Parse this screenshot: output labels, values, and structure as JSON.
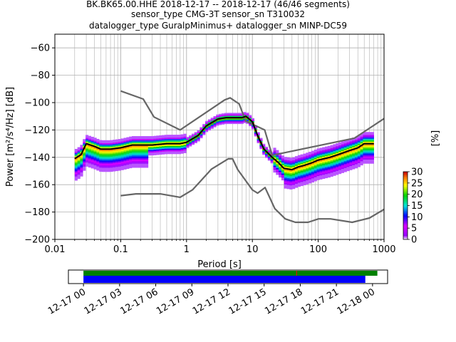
{
  "chart_data": [
    {
      "type": "heatmap",
      "title_lines": [
        "BK.BK65.00.HHE   2018-12-17 -- 2018-12-17  (46/46 segments)",
        "sensor_type CMG-3T sensor_sn T310032",
        "datalogger_type GuralpMinimus+ datalogger_sn MINP-DC59"
      ],
      "xlabel": "Period [s]",
      "ylabel": "Power [m²/s⁴/Hz] [dB]",
      "xscale": "log",
      "xlim": [
        0.01,
        1000
      ],
      "ylim": [
        -200,
        -50
      ],
      "xticks": [
        {
          "value": 0.01,
          "label": "0.01"
        },
        {
          "value": 0.1,
          "label": "0.1"
        },
        {
          "value": 1,
          "label": "1"
        },
        {
          "value": 10,
          "label": "10"
        },
        {
          "value": 100,
          "label": "100"
        },
        {
          "value": 1000,
          "label": "1000"
        }
      ],
      "yticks": [
        -60,
        -80,
        -100,
        -120,
        -140,
        -160,
        -180,
        -200
      ],
      "grid": true,
      "colorbar": {
        "label": "[%]",
        "range": [
          0,
          30
        ],
        "ticks": [
          0,
          5,
          10,
          15,
          20,
          25,
          30
        ]
      },
      "series": [
        {
          "role": "high-noise-model",
          "color": "#666666",
          "x": [
            0.1,
            0.22,
            0.32,
            0.8,
            3.8,
            4.6,
            6.3,
            7.9,
            15.4,
            20,
            354.8,
            10000
          ],
          "y": [
            -91.5,
            -97.4,
            -110.5,
            -120,
            -98,
            -96.5,
            -101,
            -113.5,
            -120,
            -138.5,
            -126,
            -80
          ]
        },
        {
          "role": "low-noise-model",
          "color": "#666666",
          "x": [
            0.1,
            0.17,
            0.4,
            0.8,
            1.24,
            2.4,
            4.3,
            5,
            6,
            10,
            12,
            15.6,
            21.9,
            31.6,
            45,
            70,
            101,
            154,
            328,
            600,
            1000
          ],
          "y": [
            -168,
            -166.7,
            -166.7,
            -169.2,
            -163.7,
            -148.6,
            -141.1,
            -141.1,
            -149,
            -163.8,
            -166.2,
            -162.1,
            -177.5,
            -185,
            -187.5,
            -187.5,
            -185,
            -185,
            -187.5,
            -184.4,
            -178
          ]
        },
        {
          "role": "mode",
          "color": "#000000",
          "x": [
            0.02,
            0.025,
            0.03,
            0.04,
            0.05,
            0.07,
            0.1,
            0.15,
            0.2,
            0.3,
            0.5,
            0.8,
            1,
            1.5,
            2,
            3,
            4,
            5,
            7,
            8,
            10,
            12,
            15,
            20,
            25,
            30,
            40,
            50,
            60,
            80,
            100,
            150,
            200,
            300,
            400,
            500,
            700
          ],
          "y": [
            -141,
            -138,
            -130,
            -132,
            -134,
            -134,
            -133,
            -131,
            -131,
            -131,
            -130,
            -130,
            -129,
            -124,
            -117,
            -112,
            -111,
            -111,
            -111,
            -110,
            -114,
            -124,
            -134,
            -140,
            -144,
            -148,
            -149,
            -147,
            -146,
            -144,
            -142,
            -140,
            -138,
            -135,
            -133,
            -130,
            -130
          ]
        }
      ]
    },
    {
      "type": "timeline",
      "xtick_labels": [
        "12-17 00",
        "12-17 03",
        "12-17 06",
        "12-17 09",
        "12-17 12",
        "12-17 15",
        "12-17 18",
        "12-17 21",
        "12-18 00"
      ],
      "xlim_hours": [
        -1.25,
        25.25
      ],
      "bars": [
        {
          "color": "#008000",
          "start_hour": 0,
          "end_hour": 24.4
        },
        {
          "color": "#0000ff",
          "start_hour": 0,
          "end_hour": 23.4
        }
      ],
      "marker_hour": 17.7
    }
  ]
}
